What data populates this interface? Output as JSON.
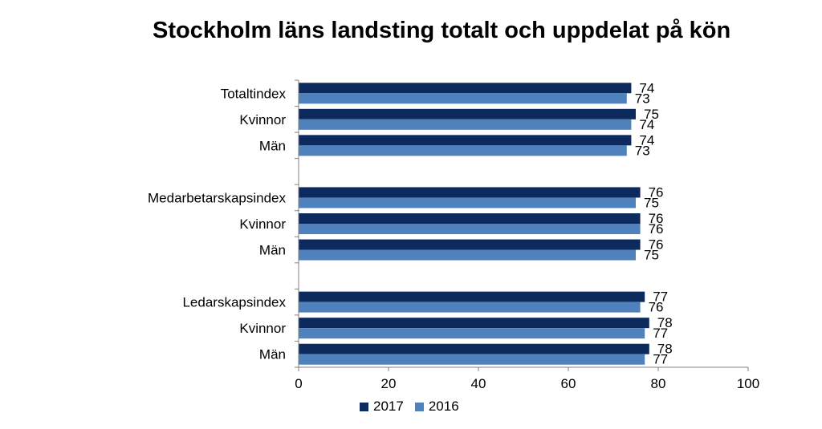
{
  "chart_data": {
    "type": "bar",
    "orientation": "horizontal",
    "title": "Stockholm läns landsting totalt och uppdelat på kön",
    "categories": [
      "Totaltindex",
      "Kvinnor",
      "Män",
      "Medarbetarskapsindex",
      "Kvinnor",
      "Män",
      "Ledarskapsindex",
      "Kvinnor",
      "Män"
    ],
    "groups": [
      [
        0,
        1,
        2
      ],
      [
        3,
        4,
        5
      ],
      [
        6,
        7,
        8
      ]
    ],
    "series": [
      {
        "name": "2017",
        "color": "#0d2a5e",
        "values": [
          74,
          75,
          74,
          76,
          76,
          76,
          77,
          78,
          78
        ]
      },
      {
        "name": "2016",
        "color": "#4f81bd",
        "values": [
          73,
          74,
          73,
          75,
          76,
          75,
          76,
          77,
          77
        ]
      }
    ],
    "xlim": [
      0,
      100
    ],
    "xticks": [
      "0",
      "20",
      "40",
      "60",
      "80",
      "100"
    ],
    "grid": false,
    "legend_position": "bottom"
  }
}
